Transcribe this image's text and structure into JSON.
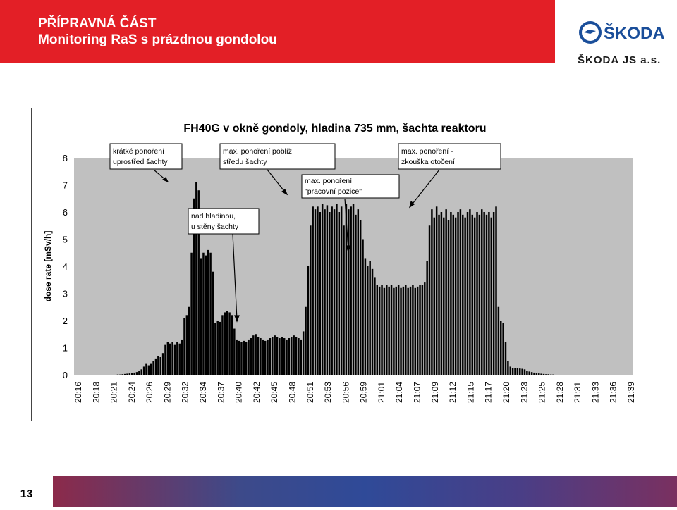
{
  "header": {
    "line1": "PŘÍPRAVNÁ ČÁST",
    "line2": "Monitoring RaS s prázdnou gondolou"
  },
  "logo": {
    "brand": "ŠKODA",
    "company": "ŠKODA JS a.s."
  },
  "footer": {
    "page_number": "13"
  },
  "colors": {
    "header_red": "#e31f26",
    "plot_bg": "#c0c0c0",
    "bar": "#000000"
  },
  "chart_data": {
    "type": "bar",
    "title": "FH40G v okně gondoly, hladina 735 mm, šachta reaktoru",
    "ylabel": "dose rate [mSv/h]",
    "xlabel": "",
    "ylim": [
      0,
      8
    ],
    "yticks": [
      0,
      1,
      2,
      3,
      4,
      5,
      6,
      7,
      8
    ],
    "grid": false,
    "x_tick_labels": [
      "20:16",
      "20:18",
      "20:21",
      "20:24",
      "20:26",
      "20:29",
      "20:32",
      "20:34",
      "20:37",
      "20:40",
      "20:42",
      "20:45",
      "20:48",
      "20:51",
      "20:53",
      "20:56",
      "20:59",
      "21:01",
      "21:04",
      "21:07",
      "21:09",
      "21:12",
      "21:15",
      "21:17",
      "21:20",
      "21:23",
      "21:25",
      "21:28",
      "21:31",
      "21:33",
      "21:36",
      "21:39"
    ],
    "values": [
      0,
      0,
      0,
      0,
      0,
      0,
      0,
      0,
      0,
      0,
      0,
      0,
      0,
      0,
      0,
      0,
      0,
      0,
      0.01,
      0.01,
      0.02,
      0.03,
      0.04,
      0.05,
      0.06,
      0.08,
      0.1,
      0.15,
      0.2,
      0.3,
      0.4,
      0.35,
      0.4,
      0.5,
      0.6,
      0.7,
      0.65,
      0.8,
      1.1,
      1.2,
      1.15,
      1.2,
      1.1,
      1.2,
      1.15,
      1.3,
      2.1,
      2.2,
      2.5,
      4.5,
      6.5,
      7.1,
      6.8,
      4.3,
      4.5,
      4.4,
      4.6,
      4.5,
      3.8,
      1.9,
      2.0,
      1.95,
      2.2,
      2.3,
      2.35,
      2.3,
      2.2,
      1.7,
      1.3,
      1.25,
      1.2,
      1.25,
      1.2,
      1.3,
      1.35,
      1.45,
      1.5,
      1.4,
      1.35,
      1.3,
      1.25,
      1.3,
      1.35,
      1.4,
      1.45,
      1.4,
      1.35,
      1.4,
      1.35,
      1.3,
      1.35,
      1.4,
      1.45,
      1.4,
      1.35,
      1.3,
      1.6,
      2.5,
      4.0,
      5.5,
      6.2,
      6.1,
      6.2,
      6.0,
      6.3,
      6.1,
      6.25,
      6.0,
      6.2,
      6.1,
      6.3,
      6.0,
      6.2,
      5.5,
      6.3,
      6.1,
      6.2,
      6.3,
      5.9,
      6.1,
      5.7,
      5.0,
      4.3,
      4.0,
      4.2,
      3.9,
      3.6,
      3.3,
      3.25,
      3.3,
      3.2,
      3.3,
      3.25,
      3.3,
      3.2,
      3.25,
      3.3,
      3.2,
      3.25,
      3.3,
      3.2,
      3.25,
      3.3,
      3.2,
      3.25,
      3.3,
      3.3,
      3.4,
      4.2,
      5.5,
      6.1,
      5.8,
      6.2,
      5.9,
      6.0,
      5.8,
      6.1,
      5.7,
      6.0,
      5.9,
      5.8,
      6.0,
      6.1,
      5.9,
      5.8,
      6.0,
      6.1,
      5.9,
      5.8,
      6.0,
      5.9,
      6.1,
      6.0,
      5.9,
      6.0,
      5.8,
      6.0,
      6.2,
      2.5,
      2.0,
      1.9,
      1.2,
      0.5,
      0.3,
      0.25,
      0.25,
      0.24,
      0.23,
      0.22,
      0.2,
      0.15,
      0.12,
      0.1,
      0.08,
      0.06,
      0.05,
      0.04,
      0.03,
      0.02,
      0.02,
      0.01,
      0.01,
      0,
      0,
      0,
      0,
      0,
      0,
      0,
      0,
      0,
      0,
      0,
      0,
      0,
      0,
      0,
      0,
      0,
      0,
      0,
      0,
      0,
      0,
      0,
      0,
      0,
      0,
      0,
      0,
      0,
      0,
      0,
      0,
      0
    ],
    "annotations": [
      "krátké ponoření uprostřed šachty",
      "max. ponoření poblíž středu šachty",
      "max. ponoření - zkouška otočení",
      "max. ponoření \"pracovní pozice\"",
      "nad hladinou, u stěny šachty"
    ]
  }
}
